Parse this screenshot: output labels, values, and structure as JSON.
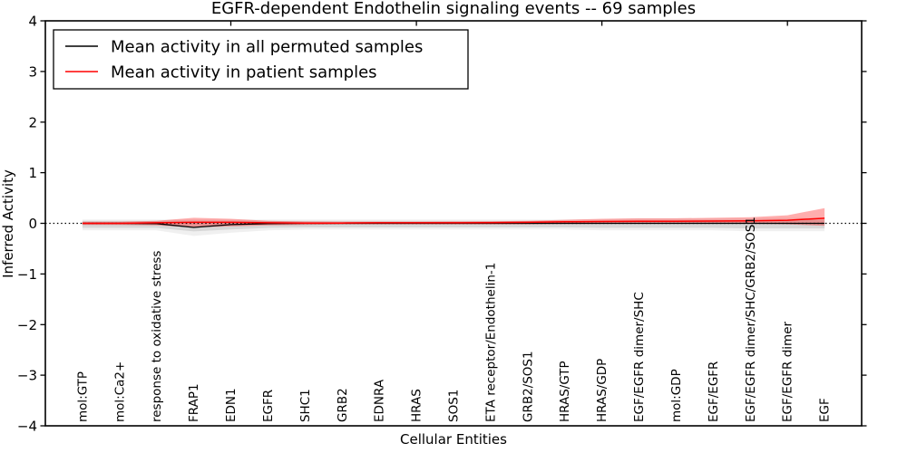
{
  "figure": {
    "title": "EGFR-dependent Endothelin signaling events -- 69 samples",
    "xlabel": "Cellular Entities",
    "ylabel": "Inferred Activity"
  },
  "legend": {
    "position": "upper-left",
    "entries": [
      {
        "label": "Mean activity in all permuted samples",
        "color": "#000000"
      },
      {
        "label": "Mean activity in patient samples",
        "color": "#ff0000"
      }
    ]
  },
  "colors": {
    "frame": "#000000",
    "reference_line": "#000000",
    "permuted_line": "#000000",
    "patient_line": "#ff0000",
    "permuted_band": "rgba(128,128,128,0.22)",
    "permuted_band_outer": "rgba(128,128,128,0.12)",
    "patient_band": "rgba(255,0,0,0.32)",
    "background": "#ffffff"
  },
  "chart_data": {
    "type": "line",
    "title": "EGFR-dependent Endothelin signaling events -- 69 samples",
    "xlabel": "Cellular Entities",
    "ylabel": "Inferred Activity",
    "ylim": [
      -4,
      4
    ],
    "xlim_categories": [
      -1,
      21
    ],
    "grid": false,
    "legend_position": "upper-left",
    "reference_line_y": 0,
    "y_ticks": [
      "4",
      "3",
      "2",
      "1",
      "0",
      "−1",
      "−2",
      "−3",
      "−4"
    ],
    "y_tick_values": [
      4,
      3,
      2,
      1,
      0,
      -1,
      -2,
      -3,
      -4
    ],
    "top_tick_category_indices": [
      4,
      9,
      14,
      19
    ],
    "categories": [
      "mol:GTP",
      "mol:Ca2+",
      "response to oxidative stress",
      "FRAP1",
      "EDN1",
      "EGFR",
      "SHC1",
      "GRB2",
      "EDNRA",
      "HRAS",
      "SOS1",
      "ETA receptor/Endothelin-1",
      "GRB2/SOS1",
      "HRAS/GTP",
      "HRAS/GDP",
      "EGF/EGFR dimer/SHC",
      "mol:GDP",
      "EGF/EGFR",
      "EGF/EGFR dimer/SHC/GRB2/SOS1",
      "EGF/EGFR dimer",
      "EGF"
    ],
    "series": [
      {
        "name": "Mean activity in all permuted samples",
        "color": "#000000",
        "values": [
          0,
          0,
          -0.005,
          -0.08,
          -0.025,
          -0.005,
          0,
          0,
          0,
          0,
          0,
          0,
          0,
          0,
          0,
          0,
          0,
          0,
          0,
          0,
          0
        ],
        "band_upper": [
          0.05,
          0.05,
          0.05,
          0.05,
          0.05,
          0.05,
          0.05,
          0.05,
          0.05,
          0.05,
          0.05,
          0.05,
          0.05,
          0.05,
          0.05,
          0.06,
          0.06,
          0.06,
          0.06,
          0.07,
          0.07
        ],
        "band_lower": [
          -0.09,
          -0.09,
          -0.09,
          -0.16,
          -0.12,
          -0.09,
          -0.08,
          -0.08,
          -0.08,
          -0.08,
          -0.08,
          -0.08,
          -0.08,
          -0.08,
          -0.09,
          -0.09,
          -0.09,
          -0.09,
          -0.1,
          -0.1,
          -0.1
        ]
      },
      {
        "name": "Mean activity in patient samples",
        "color": "#ff0000",
        "values": [
          0,
          0,
          0.01,
          0.02,
          0.02,
          0.01,
          0.005,
          0.005,
          0.01,
          0.01,
          0.01,
          0.015,
          0.02,
          0.03,
          0.035,
          0.04,
          0.04,
          0.045,
          0.05,
          0.06,
          0.1
        ],
        "band_upper": [
          0.03,
          0.03,
          0.05,
          0.11,
          0.09,
          0.05,
          0.035,
          0.03,
          0.03,
          0.03,
          0.035,
          0.04,
          0.05,
          0.07,
          0.09,
          0.1,
          0.1,
          0.11,
          0.12,
          0.16,
          0.3
        ],
        "band_lower": [
          -0.03,
          -0.03,
          -0.04,
          -0.08,
          -0.06,
          -0.04,
          -0.03,
          -0.02,
          -0.02,
          -0.02,
          -0.02,
          -0.02,
          -0.02,
          -0.015,
          -0.01,
          -0.01,
          -0.01,
          -0.01,
          -0.01,
          -0.02,
          -0.05
        ]
      }
    ]
  }
}
